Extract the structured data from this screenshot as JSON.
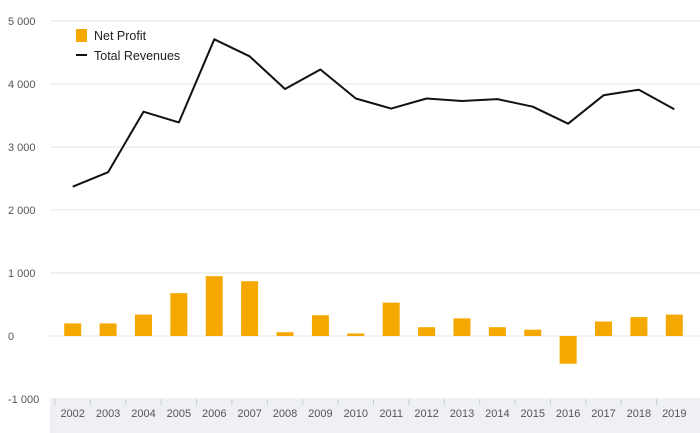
{
  "chart_data": {
    "type": "bar+line",
    "categories": [
      "2002",
      "2003",
      "2004",
      "2005",
      "2006",
      "2007",
      "2008",
      "2009",
      "2010",
      "2011",
      "2012",
      "2013",
      "2014",
      "2015",
      "2016",
      "2017",
      "2018",
      "2019"
    ],
    "series": [
      {
        "name": "Net Profit",
        "type": "bar",
        "values": [
          200,
          200,
          340,
          680,
          950,
          870,
          60,
          330,
          40,
          530,
          140,
          280,
          140,
          100,
          -440,
          230,
          300,
          340
        ]
      },
      {
        "name": "Total Revenues",
        "type": "line",
        "values": [
          2370,
          2600,
          3560,
          3390,
          4710,
          4440,
          3920,
          4230,
          3770,
          3610,
          3770,
          3730,
          3760,
          3640,
          3370,
          3820,
          3910,
          3600
        ]
      }
    ],
    "yticks": [
      "-1 000",
      "0",
      "1 000",
      "2 000",
      "3 000",
      "4 000",
      "5 000"
    ],
    "ylim": [
      -1000,
      5000
    ],
    "grid": true,
    "legend_position": "top-left",
    "colors": {
      "bar": "#f5a900",
      "line": "#111111",
      "grid": "#e6e6e6",
      "axis_band": "#eef0f4"
    }
  }
}
